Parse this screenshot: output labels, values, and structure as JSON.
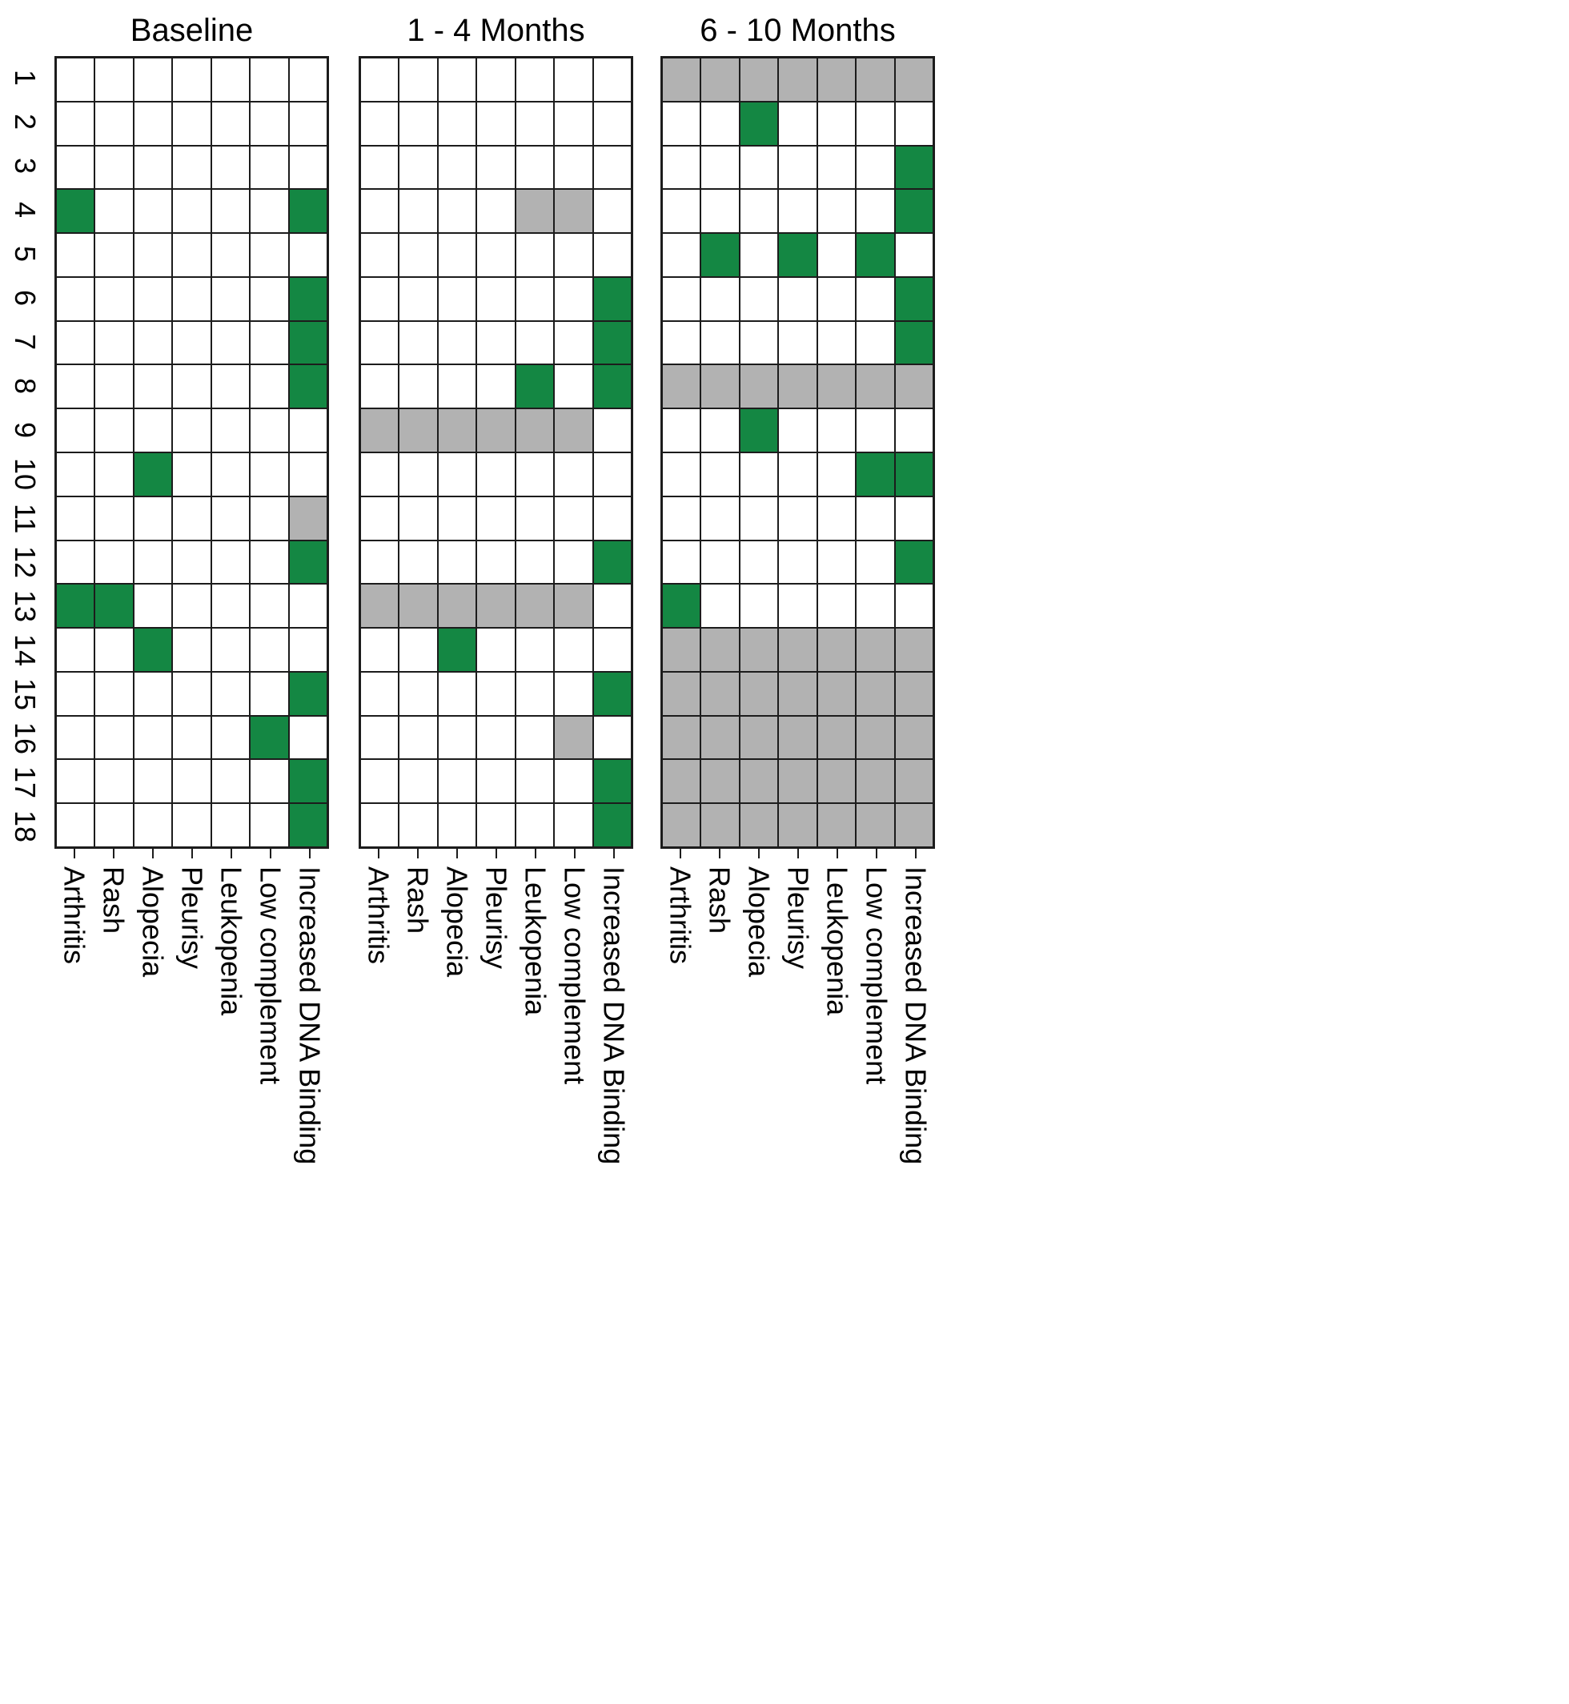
{
  "colors": {
    "present": "#148743",
    "missing": "#b2b2b2",
    "absent": "#ffffff",
    "grid_line": "#1c1c1c",
    "background": "#ffffff"
  },
  "chart_data": {
    "type": "heatmap",
    "title": "",
    "panels": [
      "Baseline",
      "1 - 4 Months",
      "6 - 10 Months"
    ],
    "rows": [
      "1",
      "2",
      "3",
      "4",
      "5",
      "6",
      "7",
      "8",
      "9",
      "10",
      "11",
      "12",
      "13",
      "14",
      "15",
      "16",
      "17",
      "18"
    ],
    "columns": [
      "Arthritis",
      "Rash",
      "Alopecia",
      "Pleurisy",
      "Leukopenia",
      "Low complement",
      "Increased DNA Binding"
    ],
    "cell_states": {
      "0": "absent",
      "1": "present",
      "2": "not-assessed"
    },
    "values": [
      [
        [
          0,
          0,
          0,
          0,
          0,
          0,
          0
        ],
        [
          0,
          0,
          0,
          0,
          0,
          0,
          0
        ],
        [
          0,
          0,
          0,
          0,
          0,
          0,
          0
        ],
        [
          1,
          0,
          0,
          0,
          0,
          0,
          1
        ],
        [
          0,
          0,
          0,
          0,
          0,
          0,
          0
        ],
        [
          0,
          0,
          0,
          0,
          0,
          0,
          1
        ],
        [
          0,
          0,
          0,
          0,
          0,
          0,
          1
        ],
        [
          0,
          0,
          0,
          0,
          0,
          0,
          1
        ],
        [
          0,
          0,
          0,
          0,
          0,
          0,
          0
        ],
        [
          0,
          0,
          1,
          0,
          0,
          0,
          0
        ],
        [
          0,
          0,
          0,
          0,
          0,
          0,
          2
        ],
        [
          0,
          0,
          0,
          0,
          0,
          0,
          1
        ],
        [
          1,
          1,
          0,
          0,
          0,
          0,
          0
        ],
        [
          0,
          0,
          1,
          0,
          0,
          0,
          0
        ],
        [
          0,
          0,
          0,
          0,
          0,
          0,
          1
        ],
        [
          0,
          0,
          0,
          0,
          0,
          1,
          0
        ],
        [
          0,
          0,
          0,
          0,
          0,
          0,
          1
        ],
        [
          0,
          0,
          0,
          0,
          0,
          0,
          1
        ]
      ],
      [
        [
          0,
          0,
          0,
          0,
          0,
          0,
          0
        ],
        [
          0,
          0,
          0,
          0,
          0,
          0,
          0
        ],
        [
          0,
          0,
          0,
          0,
          0,
          0,
          0
        ],
        [
          0,
          0,
          0,
          0,
          2,
          2,
          0
        ],
        [
          0,
          0,
          0,
          0,
          0,
          0,
          0
        ],
        [
          0,
          0,
          0,
          0,
          0,
          0,
          1
        ],
        [
          0,
          0,
          0,
          0,
          0,
          0,
          1
        ],
        [
          0,
          0,
          0,
          0,
          1,
          0,
          1
        ],
        [
          2,
          2,
          2,
          2,
          2,
          2,
          0
        ],
        [
          0,
          0,
          0,
          0,
          0,
          0,
          0
        ],
        [
          0,
          0,
          0,
          0,
          0,
          0,
          0
        ],
        [
          0,
          0,
          0,
          0,
          0,
          0,
          1
        ],
        [
          2,
          2,
          2,
          2,
          2,
          2,
          0
        ],
        [
          0,
          0,
          1,
          0,
          0,
          0,
          0
        ],
        [
          0,
          0,
          0,
          0,
          0,
          0,
          1
        ],
        [
          0,
          0,
          0,
          0,
          0,
          2,
          0
        ],
        [
          0,
          0,
          0,
          0,
          0,
          0,
          1
        ],
        [
          0,
          0,
          0,
          0,
          0,
          0,
          1
        ]
      ],
      [
        [
          2,
          2,
          2,
          2,
          2,
          2,
          2
        ],
        [
          0,
          0,
          1,
          0,
          0,
          0,
          0
        ],
        [
          0,
          0,
          0,
          0,
          0,
          0,
          1
        ],
        [
          0,
          0,
          0,
          0,
          0,
          0,
          1
        ],
        [
          0,
          1,
          0,
          1,
          0,
          1,
          0
        ],
        [
          0,
          0,
          0,
          0,
          0,
          0,
          1
        ],
        [
          0,
          0,
          0,
          0,
          0,
          0,
          1
        ],
        [
          2,
          2,
          2,
          2,
          2,
          2,
          2
        ],
        [
          0,
          0,
          1,
          0,
          0,
          0,
          0
        ],
        [
          0,
          0,
          0,
          0,
          0,
          1,
          1
        ],
        [
          0,
          0,
          0,
          0,
          0,
          0,
          0
        ],
        [
          0,
          0,
          0,
          0,
          0,
          0,
          1
        ],
        [
          1,
          0,
          0,
          0,
          0,
          0,
          0
        ],
        [
          2,
          2,
          2,
          2,
          2,
          2,
          2
        ],
        [
          2,
          2,
          2,
          2,
          2,
          2,
          2
        ],
        [
          2,
          2,
          2,
          2,
          2,
          2,
          2
        ],
        [
          2,
          2,
          2,
          2,
          2,
          2,
          2
        ],
        [
          2,
          2,
          2,
          2,
          2,
          2,
          2
        ]
      ]
    ]
  }
}
